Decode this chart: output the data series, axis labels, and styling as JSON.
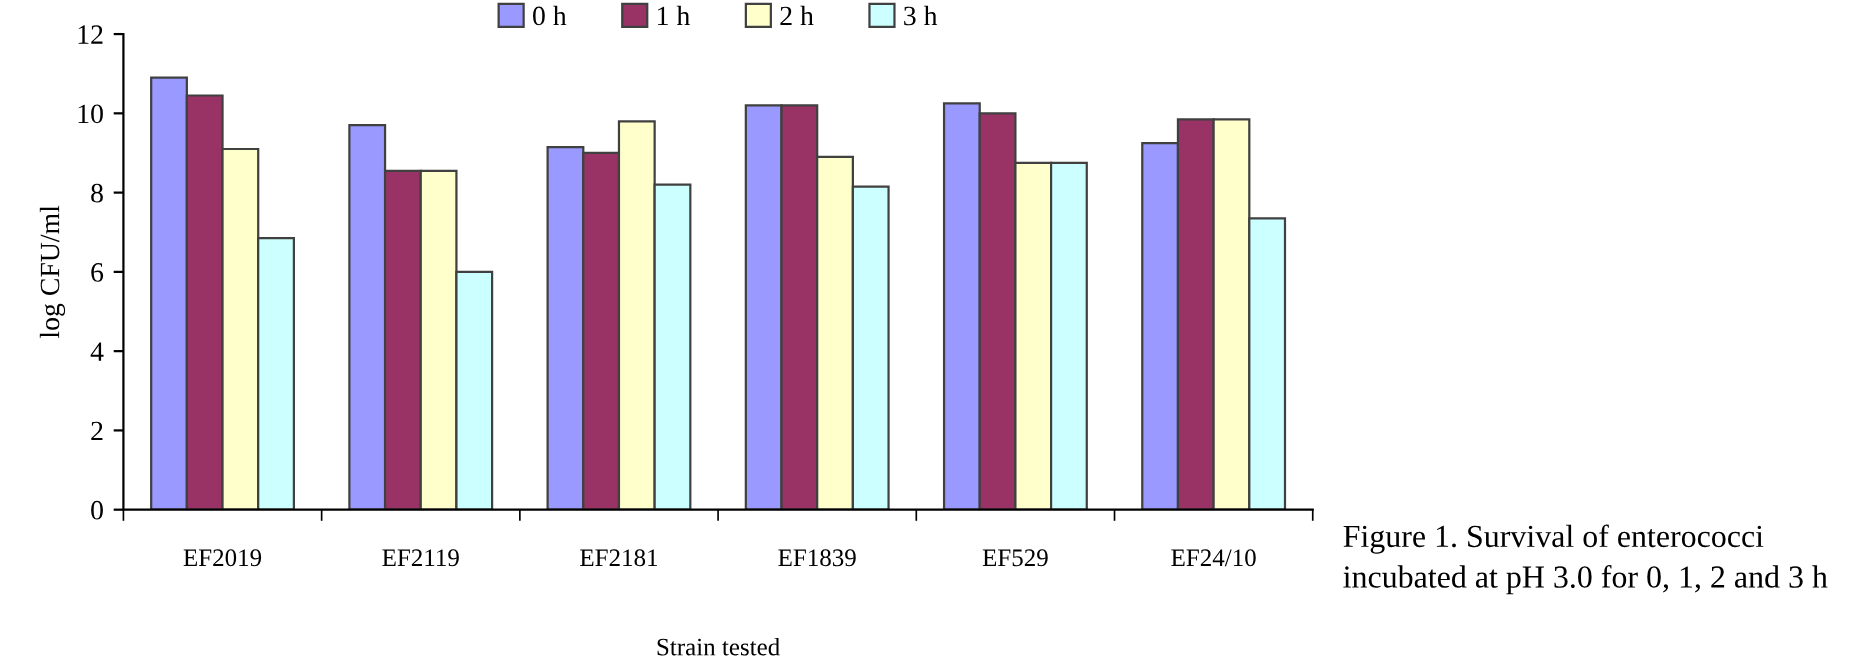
{
  "chart_data": {
    "type": "bar",
    "categories": [
      "EF2019",
      "EF2119",
      "EF2181",
      "EF1839",
      "EF529",
      "EF24/10"
    ],
    "series": [
      {
        "name": "0 h",
        "color": "#9999ff",
        "values": [
          10.9,
          9.7,
          9.15,
          10.2,
          10.25,
          9.25
        ]
      },
      {
        "name": "1 h",
        "color": "#993366",
        "values": [
          10.45,
          8.55,
          9.0,
          10.2,
          10.0,
          9.85
        ]
      },
      {
        "name": "2 h",
        "color": "#ffffcc",
        "values": [
          9.1,
          8.55,
          9.8,
          8.9,
          8.75,
          9.85
        ]
      },
      {
        "name": "3 h",
        "color": "#ccffff",
        "values": [
          6.85,
          6.0,
          8.2,
          8.15,
          8.75,
          7.35
        ]
      }
    ],
    "xlabel": "Strain tested",
    "ylabel": "log CFU/ml",
    "ylim": [
      0,
      12
    ],
    "yticks": [
      0,
      2,
      4,
      6,
      8,
      10,
      12
    ],
    "grid": false,
    "legend": "top",
    "annotations": [
      "Figure 1. Survival of enterococci incubated at pH 3.0 for 0, 1, 2 and 3 h"
    ]
  }
}
